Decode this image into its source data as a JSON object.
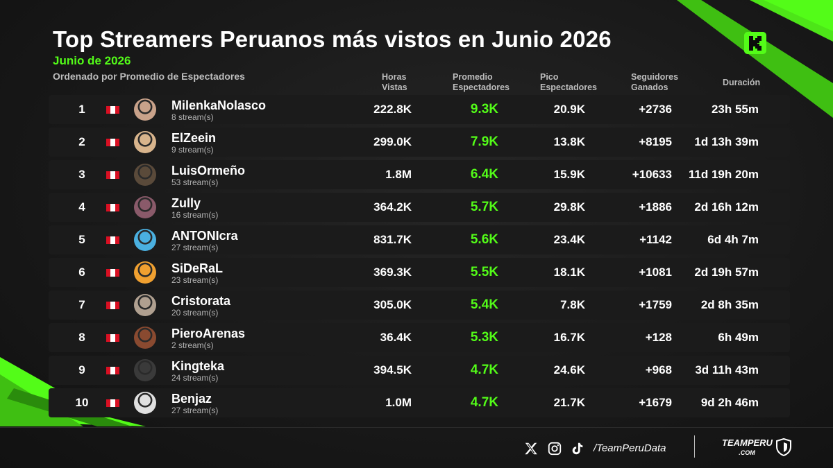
{
  "header": {
    "title": "Top Streamers Peruanos más vistos en Junio 2026",
    "subtitle": "Junio de 2026",
    "sort_label": "Ordenado por Promedio de Espectadores",
    "logo_icon": "kick-logo-icon",
    "accent_color": "#53fc18"
  },
  "columns": {
    "hours": "Horas\nVistas",
    "avg": "Promedio\nEspectadores",
    "peak": "Pico\nEspectadores",
    "followers": "Seguidores\nGanados",
    "duration": "Duración"
  },
  "rows": [
    {
      "rank": "1",
      "name": "MilenkaNolasco",
      "streams": "8 stream(s)",
      "hours": "222.8K",
      "avg": "9.3K",
      "peak": "20.9K",
      "followers": "+2736",
      "duration": "23h 55m"
    },
    {
      "rank": "2",
      "name": "ElZeein",
      "streams": "9 stream(s)",
      "hours": "299.0K",
      "avg": "7.9K",
      "peak": "13.8K",
      "followers": "+8195",
      "duration": "1d 13h 39m"
    },
    {
      "rank": "3",
      "name": "LuisOrmeño",
      "streams": "53 stream(s)",
      "hours": "1.8M",
      "avg": "6.4K",
      "peak": "15.9K",
      "followers": "+10633",
      "duration": "11d 19h 20m"
    },
    {
      "rank": "4",
      "name": "Zully",
      "streams": "16 stream(s)",
      "hours": "364.2K",
      "avg": "5.7K",
      "peak": "29.8K",
      "followers": "+1886",
      "duration": "2d 16h 12m"
    },
    {
      "rank": "5",
      "name": "ANTONIcra",
      "streams": "27 stream(s)",
      "hours": "831.7K",
      "avg": "5.6K",
      "peak": "23.4K",
      "followers": "+1142",
      "duration": "6d 4h 7m"
    },
    {
      "rank": "6",
      "name": "SiDeRaL",
      "streams": "23 stream(s)",
      "hours": "369.3K",
      "avg": "5.5K",
      "peak": "18.1K",
      "followers": "+1081",
      "duration": "2d 19h 57m"
    },
    {
      "rank": "7",
      "name": "Cristorata",
      "streams": "20 stream(s)",
      "hours": "305.0K",
      "avg": "5.4K",
      "peak": "7.8K",
      "followers": "+1759",
      "duration": "2d 8h 35m"
    },
    {
      "rank": "8",
      "name": "PieroArenas",
      "streams": "2 stream(s)",
      "hours": "36.4K",
      "avg": "5.3K",
      "peak": "16.7K",
      "followers": "+128",
      "duration": "6h 49m"
    },
    {
      "rank": "9",
      "name": "Kingteka",
      "streams": "24 stream(s)",
      "hours": "394.5K",
      "avg": "4.7K",
      "peak": "24.6K",
      "followers": "+968",
      "duration": "3d 11h 43m"
    },
    {
      "rank": "10",
      "name": "Benjaz",
      "streams": "27 stream(s)",
      "hours": "1.0M",
      "avg": "4.7K",
      "peak": "21.7K",
      "followers": "+1679",
      "duration": "9d 2h 46m"
    }
  ],
  "avatar_colors": [
    "#c9a28a",
    "#d8b48c",
    "#5a4a3a",
    "#8a5a6a",
    "#4ab0e0",
    "#f0a030",
    "#b0a090",
    "#8a4a30",
    "#3a3a3a",
    "#e0e0e0"
  ],
  "footer": {
    "handle": "/TeamPeruData",
    "brand": "TEAMPERU",
    "brand_sub": ".COM",
    "social_icons": [
      "x-icon",
      "instagram-icon",
      "tiktok-icon"
    ]
  }
}
